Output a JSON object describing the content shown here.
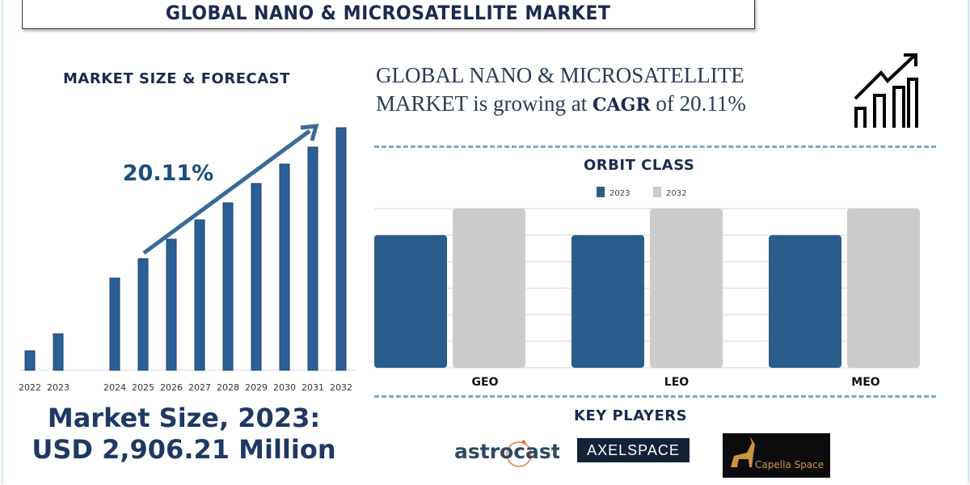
{
  "title": "GLOBAL NANO & MICROSATELLITE MARKET",
  "left": {
    "heading": "MARKET SIZE & FORECAST",
    "market_size_line1": "Market Size, 2023:",
    "market_size_line2": "USD 2,906.21 Million"
  },
  "cagr_text": {
    "line1": "GLOBAL NANO & MICROSATELLITE",
    "line2_prefix": "MARKET is growing at ",
    "line2_bold": "CAGR",
    "line2_suffix": " of  20.11%"
  },
  "key_players": {
    "heading": "KEY PLAYERS",
    "logos": [
      "astrocast",
      "AXELSPACE",
      "Capella Space"
    ]
  },
  "colors": {
    "navy": "#1c2a4f",
    "bar_blue": "#2b5f95",
    "orbit_2023": "#2a5d8c",
    "orbit_2032": "#cccccc"
  },
  "chart_data": [
    {
      "type": "bar",
      "title": "MARKET SIZE & FORECAST",
      "categories": [
        "2022",
        "2023",
        "2024",
        "2025",
        "2026",
        "2027",
        "2028",
        "2029",
        "2030",
        "2031",
        "2032"
      ],
      "values": [
        8,
        15,
        38,
        46,
        54,
        62,
        69,
        77,
        85,
        92,
        100
      ],
      "value_scale": "relative (no axis printed)",
      "annotation": "20.11%",
      "grid": false
    },
    {
      "type": "bar",
      "title": "ORBIT CLASS",
      "categories": [
        "GEO",
        "LEO",
        "MEO"
      ],
      "series": [
        {
          "name": "2023",
          "values": [
            5,
            5,
            5
          ]
        },
        {
          "name": "2032",
          "values": [
            6,
            6,
            6
          ]
        }
      ],
      "value_scale": "relative (no axis printed)",
      "ylim": [
        0,
        6
      ],
      "grid": true,
      "legend": "top"
    }
  ]
}
